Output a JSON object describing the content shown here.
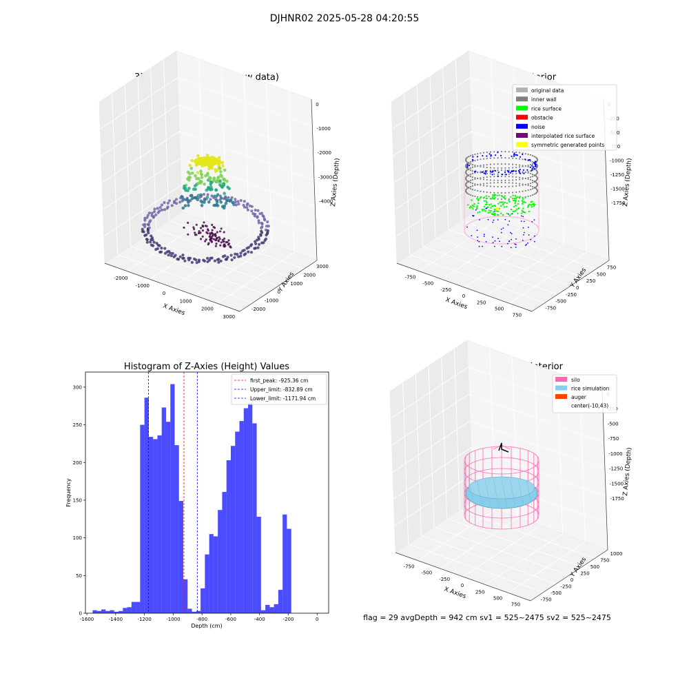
{
  "figure": {
    "suptitle": "DJHNR02 2025-05-28 04:20:55",
    "footer": "flag = 29  avgDepth = 942 cm  sv1 = 525~2475  sv2 = 525~2475"
  },
  "panels": {
    "raw": {
      "title": "3D Plot of Silo Interior(row data)",
      "xlabel": "X Axies",
      "ylabel": "Y Axies",
      "zlabel": "Z Axies (Depth)",
      "xticks": [
        "-2000",
        "-1000",
        "0",
        "1000",
        "2000",
        "3000"
      ],
      "yticks": [
        "-2000",
        "-1000",
        "0",
        "1000",
        "2000",
        "3000"
      ],
      "zticks": [
        "0",
        "-1000",
        "-2000",
        "-3000",
        "-4000"
      ]
    },
    "classify": {
      "title": "3D classify of Silo Interior",
      "xlabel": "X Axies",
      "ylabel": "Y Axies",
      "zlabel": "Z Axies (Depth)",
      "xticks": [
        "-750",
        "-500",
        "-250",
        "0",
        "250",
        "500",
        "750"
      ],
      "yticks": [
        "-750",
        "-500",
        "-250",
        "0",
        "250",
        "500",
        "750"
      ],
      "zticks": [
        "0",
        "-250",
        "-500",
        "-750",
        "-1000",
        "-1250",
        "-1500",
        "-1750"
      ],
      "legend": [
        {
          "label": "original data",
          "color": "#b3b3b3"
        },
        {
          "label": "inner wall",
          "color": "#808080"
        },
        {
          "label": "rice surface",
          "color": "#00ff00"
        },
        {
          "label": "obstacle",
          "color": "#ff0000"
        },
        {
          "label": "noise",
          "color": "#0000ff"
        },
        {
          "label": "interpolated rice surface",
          "color": "#800080"
        },
        {
          "label": "symmetric generated points",
          "color": "#ffff00"
        }
      ]
    },
    "simulation": {
      "title": "3D simulation of Silo Interior",
      "xlabel": "X Axies",
      "ylabel": "Y Axies",
      "zlabel": "Z Axies (Depth)",
      "xticks": [
        "-750",
        "-500",
        "-250",
        "0",
        "250",
        "500",
        "750"
      ],
      "yticks": [
        "-750",
        "-500",
        "-250",
        "0",
        "250",
        "500",
        "750",
        "1000"
      ],
      "zticks": [
        "0",
        "-250",
        "-500",
        "-750",
        "-1000",
        "-1250",
        "-1500",
        "-1750"
      ],
      "legend": [
        {
          "label": "silo",
          "color": "#ff69b4"
        },
        {
          "label": "rice simulation",
          "color": "#87ceeb"
        },
        {
          "label": "auger",
          "color": "#ff4500"
        },
        {
          "label": "center(-10,43)",
          "color": ""
        }
      ]
    }
  },
  "chart_data": {
    "type": "bar",
    "title": "Histogram of Z-Axies (Height) Values",
    "xlabel": "Depth (cm)",
    "ylabel": "Frequency",
    "xlim": [
      -1610,
      80
    ],
    "ylim": [
      0,
      320
    ],
    "xticks": [
      -1600,
      -1400,
      -1200,
      -1000,
      -800,
      -600,
      -400,
      -200,
      0
    ],
    "yticks": [
      0,
      50,
      100,
      150,
      200,
      250,
      300
    ],
    "bar_color": "#0000ff",
    "bin_start": -1560,
    "bin_width": 30,
    "values": [
      4,
      3,
      5,
      3,
      4,
      2,
      3,
      7,
      8,
      15,
      15,
      250,
      286,
      234,
      231,
      236,
      273,
      254,
      304,
      223,
      149,
      45,
      6,
      2,
      3,
      33,
      78,
      105,
      102,
      137,
      161,
      203,
      222,
      241,
      255,
      272,
      279,
      252,
      128,
      4,
      11,
      8,
      12,
      31,
      131,
      112
    ],
    "vlines": [
      {
        "label": "first_peak: -925.36 cm",
        "x": -925.36,
        "color": "#ff0000"
      },
      {
        "label": "Upper_limit: -832.89 cm",
        "x": -832.89,
        "color": "#0000ff"
      },
      {
        "label": "Lower_limit: -1171.94 cm",
        "x": -1171.94,
        "color": "#0000ff"
      }
    ]
  }
}
